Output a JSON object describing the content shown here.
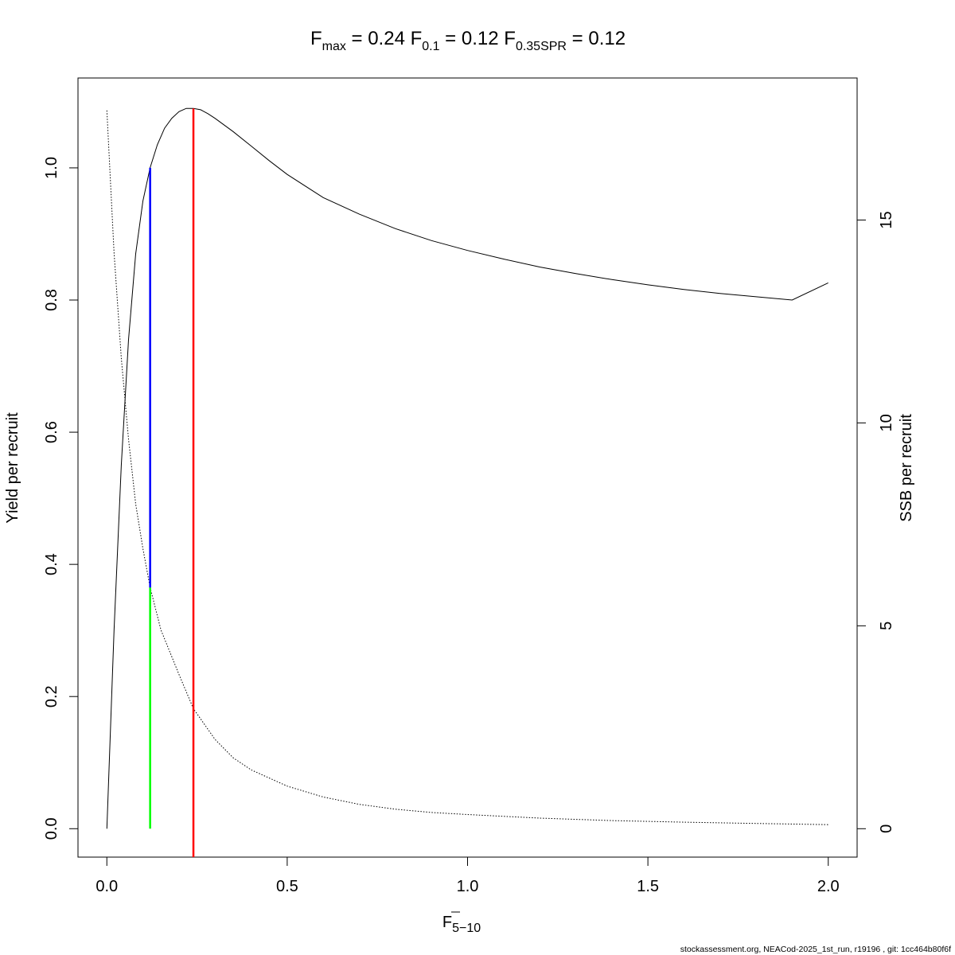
{
  "chart_data": {
    "type": "line",
    "title": {
      "fmax": {
        "base": "F",
        "sub": "max",
        "value": "0.24"
      },
      "f01": {
        "base": "F",
        "sub": "0.1",
        "value": "0.12"
      },
      "fspr": {
        "base": "F",
        "sub": "0.35SPR",
        "value": "0.12"
      }
    },
    "xlabel": {
      "base": "F",
      "sub": "5−10"
    },
    "ylabel_left": "Yield per recruit",
    "ylabel_right": "SSB per recruit",
    "xlim": [
      -0.08,
      2.08
    ],
    "ylim_left": [
      -0.043,
      1.136
    ],
    "ylim_right": [
      -0.7,
      18.5
    ],
    "x_ticks": [
      0.0,
      0.5,
      1.0,
      1.5,
      2.0
    ],
    "x_tick_labels": [
      "0.0",
      "0.5",
      "1.0",
      "1.5",
      "2.0"
    ],
    "y_left_ticks": [
      0.0,
      0.2,
      0.4,
      0.6,
      0.8,
      1.0
    ],
    "y_left_tick_labels": [
      "0.0",
      "0.2",
      "0.4",
      "0.6",
      "0.8",
      "1.0"
    ],
    "y_right_ticks": [
      0,
      5,
      10,
      15
    ],
    "y_right_tick_labels": [
      "0",
      "5",
      "10",
      "15"
    ],
    "grid": false,
    "series": [
      {
        "axis": "left",
        "color": "#000000",
        "style": "solid",
        "x": [
          0,
          0.02,
          0.04,
          0.06,
          0.08,
          0.1,
          0.12,
          0.14,
          0.16,
          0.18,
          0.2,
          0.22,
          0.24,
          0.26,
          0.28,
          0.3,
          0.35,
          0.4,
          0.45,
          0.5,
          0.6,
          0.7,
          0.8,
          0.9,
          1.0,
          1.1,
          1.2,
          1.3,
          1.4,
          1.5,
          1.6,
          1.7,
          1.8,
          1.9,
          2.0
        ],
        "y": [
          0.0,
          0.3,
          0.55,
          0.74,
          0.87,
          0.95,
          1.0,
          1.035,
          1.06,
          1.075,
          1.085,
          1.09,
          1.09,
          1.088,
          1.082,
          1.075,
          1.055,
          1.033,
          1.011,
          0.99,
          0.955,
          0.93,
          0.908,
          0.89,
          0.875,
          0.862,
          0.85,
          0.84,
          0.831,
          0.823,
          0.816,
          0.81,
          0.805,
          0.8,
          0.826
        ]
      },
      {
        "axis": "right",
        "color": "#000000",
        "style": "dotted",
        "x": [
          0,
          0.02,
          0.04,
          0.06,
          0.08,
          0.1,
          0.12,
          0.15,
          0.2,
          0.24,
          0.3,
          0.35,
          0.4,
          0.5,
          0.6,
          0.7,
          0.8,
          0.9,
          1.0,
          1.2,
          1.4,
          1.6,
          1.8,
          2.0
        ],
        "y": [
          17.7,
          14.2,
          11.6,
          9.6,
          8.0,
          6.9,
          5.95,
          4.9,
          3.8,
          2.96,
          2.2,
          1.75,
          1.45,
          1.05,
          0.78,
          0.6,
          0.48,
          0.4,
          0.35,
          0.26,
          0.2,
          0.16,
          0.13,
          0.1
        ]
      }
    ],
    "reference_lines": [
      {
        "x": 0.12,
        "y_from": 0.0,
        "y_to": 0.365,
        "color": "#00ff00"
      },
      {
        "x": 0.12,
        "y_from": 0.365,
        "y_to": 1.0,
        "color": "#0000ff"
      },
      {
        "x": 0.24,
        "y_from": -0.043,
        "y_to": 1.09,
        "color": "#ff0000"
      }
    ]
  },
  "footer": "stockassessment.org, NEACod-2025_1st_run, r19196 , git: 1cc464b80f6f"
}
